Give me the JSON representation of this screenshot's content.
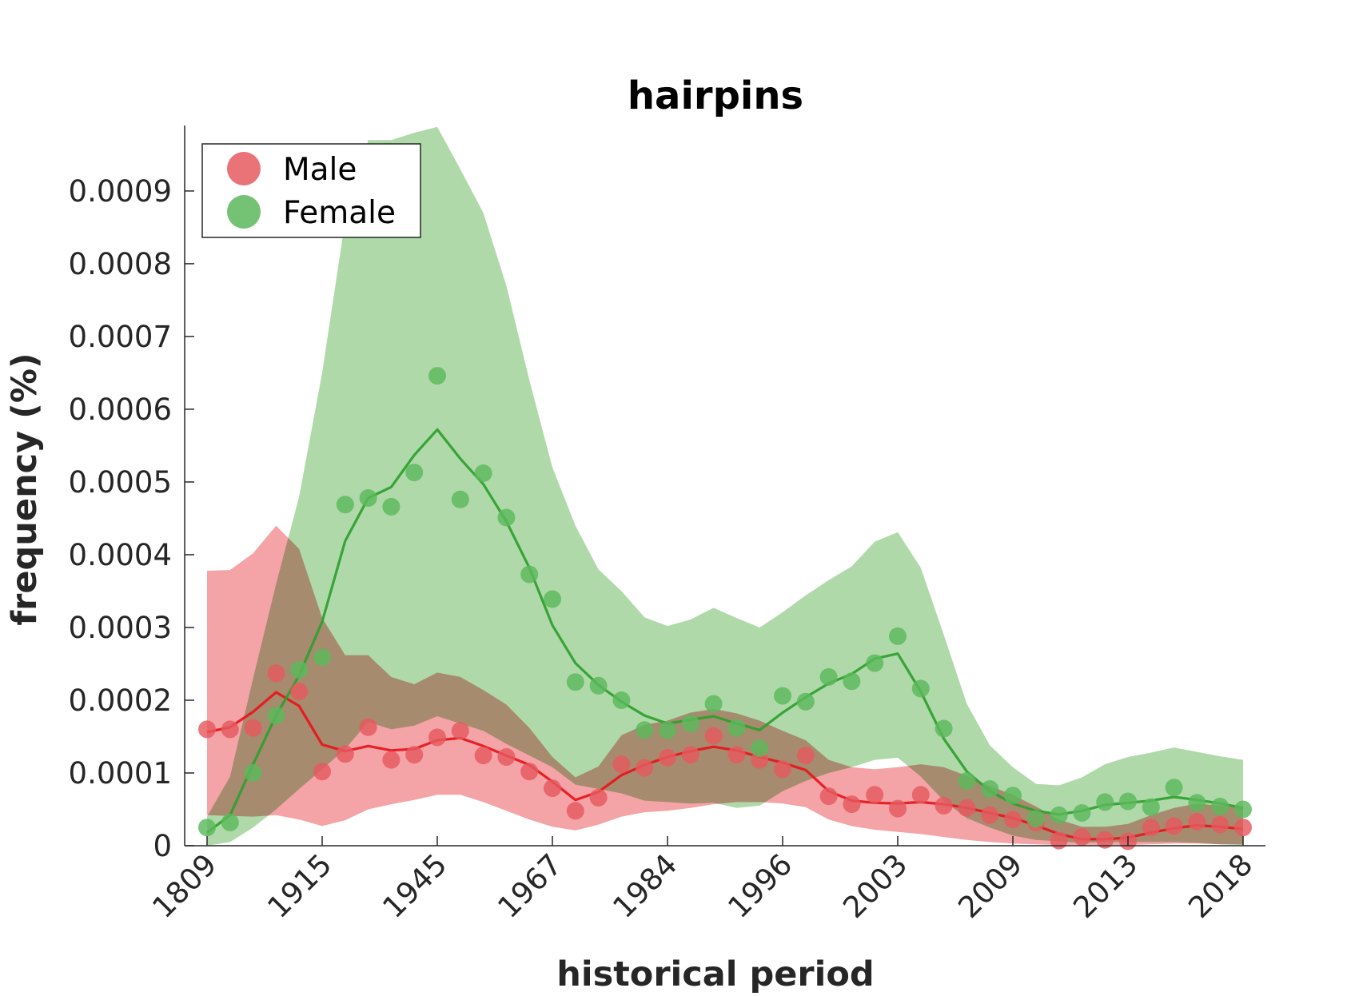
{
  "chart_data": {
    "type": "line",
    "title": "hairpins",
    "xlabel": "historical period",
    "ylabel": "frequency (%)",
    "x_tick_labels": [
      "1809",
      "1915",
      "1945",
      "1967",
      "1984",
      "1996",
      "2003",
      "2009",
      "2013",
      "2018"
    ],
    "y_tick_labels": [
      "0",
      "0.0001",
      "0.0002",
      "0.0003",
      "0.0004",
      "0.0005",
      "0.0006",
      "0.0007",
      "0.0008",
      "0.0009"
    ],
    "y_ticks": [
      0,
      0.0001,
      0.0002,
      0.0003,
      0.0004,
      0.0005,
      0.0006,
      0.0007,
      0.0008,
      0.0009
    ],
    "ylim": [
      0,
      0.00099
    ],
    "n_points": 46,
    "grid": false,
    "legend": "top-left",
    "series": [
      {
        "name": "Male",
        "color": "#e8141b",
        "points": [
          0.00016,
          0.00016,
          0.000162,
          0.000237,
          0.000212,
          0.000102,
          0.000126,
          0.000163,
          0.000118,
          0.000125,
          0.000149,
          0.000158,
          0.000124,
          0.000122,
          0.000102,
          7.9e-05,
          4.8e-05,
          6.6e-05,
          0.000112,
          0.000107,
          0.000121,
          0.000125,
          0.000151,
          0.000125,
          0.000118,
          0.000105,
          0.000124,
          6.8e-05,
          5.7e-05,
          7e-05,
          5.1e-05,
          7e-05,
          5.5e-05,
          5.2e-05,
          4.2e-05,
          3.6e-05,
          3.2e-05,
          7e-06,
          1.2e-05,
          8e-06,
          6e-06,
          2.5e-05,
          2.7e-05,
          3.3e-05,
          2.9e-05,
          2.5e-05
        ],
        "smooth": [
          0.000156,
          0.000163,
          0.000184,
          0.000211,
          0.000192,
          0.000139,
          0.00013,
          0.000137,
          0.000131,
          0.000133,
          0.000145,
          0.000148,
          0.000137,
          0.000124,
          0.000111,
          8.8e-05,
          6.3e-05,
          7.4e-05,
          9.7e-05,
          0.000111,
          0.000122,
          0.00013,
          0.000136,
          0.000131,
          0.000122,
          0.000114,
          0.000104,
          7.5e-05,
          6.2e-05,
          5.9e-05,
          5.8e-05,
          6e-05,
          5.7e-05,
          5.2e-05,
          4.5e-05,
          3.8e-05,
          2.8e-05,
          1.6e-05,
          9e-06,
          9e-06,
          1.1e-05,
          1.8e-05,
          2.4e-05,
          2.8e-05,
          2.6e-05,
          2.3e-05
        ],
        "band_upper": [
          0.000378,
          0.000379,
          0.000402,
          0.00044,
          0.000408,
          0.000313,
          0.000262,
          0.000262,
          0.000232,
          0.000222,
          0.000238,
          0.000232,
          0.000214,
          0.000194,
          0.000162,
          0.000122,
          9.4e-05,
          0.000109,
          0.000152,
          0.000166,
          0.000172,
          0.000183,
          0.000188,
          0.000182,
          0.000172,
          0.000158,
          0.000145,
          0.000118,
          0.000108,
          0.000105,
          0.000108,
          0.000112,
          0.000108,
          9.6e-05,
          8.2e-05,
          7e-05,
          5.4e-05,
          3.6e-05,
          2.6e-05,
          2.6e-05,
          3e-05,
          4.2e-05,
          5.2e-05,
          5.8e-05,
          5.5e-05,
          5.2e-05
        ],
        "band_lower": [
          4.2e-05,
          4.1e-05,
          4e-05,
          4.2e-05,
          3.6e-05,
          2.7e-05,
          3.5e-05,
          5e-05,
          5.7e-05,
          6.3e-05,
          7e-05,
          7e-05,
          6e-05,
          4.8e-05,
          3.6e-05,
          2.6e-05,
          2.1e-05,
          2.9e-05,
          4e-05,
          4.6e-05,
          4.8e-05,
          5.2e-05,
          5.7e-05,
          6e-05,
          6e-05,
          5.8e-05,
          5.3e-05,
          3.6e-05,
          2.7e-05,
          2.2e-05,
          1.9e-05,
          1.6e-05,
          1.2e-05,
          8e-06,
          5e-06,
          3e-06,
          2e-06,
          1e-06,
          1e-06,
          1e-06,
          1e-06,
          2e-06,
          3e-06,
          3e-06,
          2e-06,
          2e-06
        ]
      },
      {
        "name": "Female",
        "color": "#2ca02c",
        "points": [
          2.5e-05,
          3.2e-05,
          0.0001,
          0.000179,
          0.000242,
          0.000259,
          0.000469,
          0.000478,
          0.000466,
          0.000513,
          0.000646,
          0.000476,
          0.000512,
          0.000451,
          0.000373,
          0.000339,
          0.000225,
          0.00022,
          0.0002,
          0.000159,
          0.000159,
          0.000168,
          0.000195,
          0.000162,
          0.000134,
          0.000206,
          0.000198,
          0.000232,
          0.000226,
          0.000251,
          0.000288,
          0.000216,
          0.000161,
          8.9e-05,
          7.8e-05,
          6.9e-05,
          3.7e-05,
          4.2e-05,
          4.5e-05,
          6e-05,
          6.1e-05,
          5.3e-05,
          8e-05,
          5.9e-05,
          5.4e-05,
          5e-05
        ],
        "smooth": [
          1.8e-05,
          4.2e-05,
          0.000112,
          0.000179,
          0.000234,
          0.000308,
          0.000419,
          0.000478,
          0.000493,
          0.000537,
          0.000572,
          0.000532,
          0.000497,
          0.000446,
          0.000382,
          0.000303,
          0.000251,
          0.000221,
          0.000198,
          0.000179,
          0.000168,
          0.000173,
          0.000178,
          0.000168,
          0.000159,
          0.000183,
          0.000204,
          0.000223,
          0.000236,
          0.000257,
          0.000264,
          0.000212,
          0.000147,
          0.000102,
          7.5e-05,
          5.8e-05,
          4.8e-05,
          4.3e-05,
          4.8e-05,
          5.6e-05,
          5.9e-05,
          6.2e-05,
          6.7e-05,
          6.3e-05,
          5.8e-05,
          5.2e-05
        ],
        "band_upper": [
          4e-05,
          9.5e-05,
          0.00023,
          0.00036,
          0.00048,
          0.00065,
          0.00086,
          0.00097,
          0.00097,
          0.00098,
          0.000988,
          0.00093,
          0.00087,
          0.00077,
          0.00064,
          0.00052,
          0.00044,
          0.00038,
          0.00035,
          0.000314,
          0.000302,
          0.000311,
          0.000327,
          0.000313,
          0.0003,
          0.000321,
          0.000344,
          0.000365,
          0.000384,
          0.000418,
          0.000431,
          0.000382,
          0.00029,
          0.000195,
          0.000138,
          0.000108,
          8.5e-05,
          8.3e-05,
          9.4e-05,
          0.000112,
          0.000122,
          0.000128,
          0.000135,
          0.000129,
          0.000123,
          0.000118
        ],
        "band_lower": [
          0.0,
          5e-06,
          2.5e-05,
          5e-05,
          7.8e-05,
          0.000105,
          0.000133,
          0.00017,
          0.00016,
          0.000165,
          0.000178,
          0.000168,
          0.000158,
          0.00014,
          0.000124,
          0.000108,
          8.4e-05,
          7.8e-05,
          7.2e-05,
          6.2e-05,
          6e-05,
          5.8e-05,
          5.9e-05,
          5.2e-05,
          5.5e-05,
          7.5e-05,
          8.9e-05,
          0.0001,
          0.000108,
          0.000118,
          0.000121,
          9.5e-05,
          6.2e-05,
          3.8e-05,
          2.5e-05,
          1.4e-05,
          8e-06,
          6e-06,
          4e-06,
          5e-06,
          5e-06,
          5e-06,
          5e-06,
          4e-06,
          2e-06,
          1e-06
        ]
      }
    ],
    "band_colors": {
      "Male": "#f4a3a6",
      "Female": "#afd9a9",
      "overlap": "#a89e72"
    },
    "marker_colors": {
      "Male": "#e55a5f",
      "Female": "#5cb85c"
    }
  }
}
